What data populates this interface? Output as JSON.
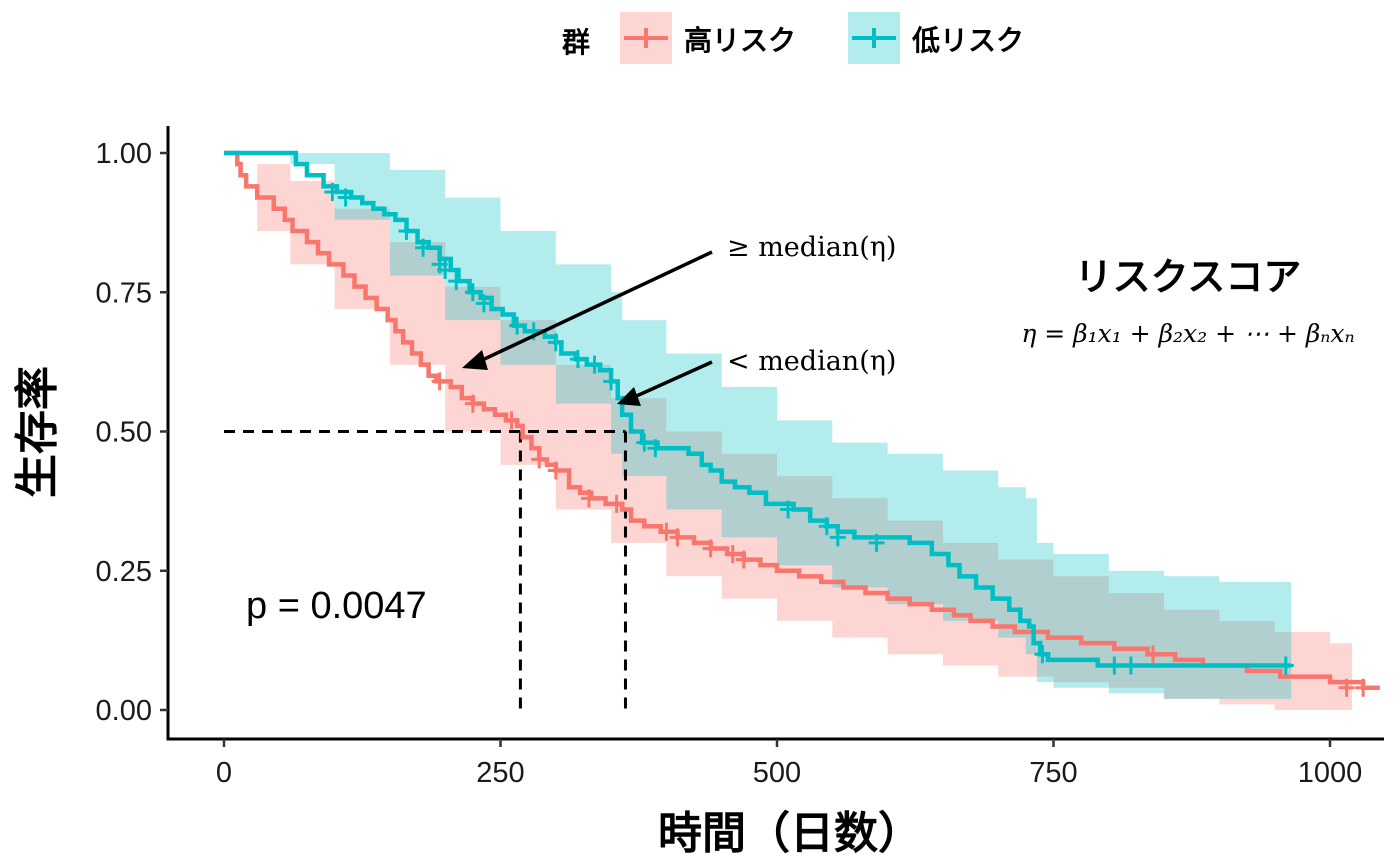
{
  "chart_data": {
    "type": "line",
    "subtype": "kaplan-meier",
    "xlabel": "時間（日数）",
    "ylabel": "生存率",
    "xlim": [
      -50,
      1045
    ],
    "ylim": [
      -0.05,
      1.05
    ],
    "xticks": [
      0,
      250,
      500,
      750,
      1000
    ],
    "xtick_labels": [
      "0",
      "250",
      "500",
      "750",
      "1000"
    ],
    "yticks": [
      0,
      0.25,
      0.5,
      0.75,
      1.0
    ],
    "ytick_labels": [
      "0.00",
      "0.25",
      "0.50",
      "0.75",
      "1.00"
    ],
    "grid": false,
    "legend": {
      "title": "群",
      "placement": "top",
      "entries": [
        "高リスク",
        "低リスク"
      ]
    },
    "p_value_text": "p = 0.0047",
    "median_line_y": 0.5,
    "medians": [
      268,
      363
    ],
    "annotations": {
      "high_label": "≥ median(η)",
      "low_label": "< median(η)",
      "score_title": "リスクスコア",
      "formula": "η = β₁x₁ + β₂x₂ + ⋯ + βₙxₙ"
    },
    "series": [
      {
        "name": "高リスク",
        "color": "#F8766D",
        "band_color": "#F8766D",
        "steps": [
          [
            0,
            1.0
          ],
          [
            12,
            0.98
          ],
          [
            15,
            0.96
          ],
          [
            20,
            0.94
          ],
          [
            30,
            0.92
          ],
          [
            45,
            0.9
          ],
          [
            55,
            0.88
          ],
          [
            62,
            0.86
          ],
          [
            75,
            0.84
          ],
          [
            85,
            0.82
          ],
          [
            95,
            0.8
          ],
          [
            108,
            0.78
          ],
          [
            118,
            0.76
          ],
          [
            128,
            0.74
          ],
          [
            138,
            0.72
          ],
          [
            148,
            0.7
          ],
          [
            155,
            0.68
          ],
          [
            162,
            0.66
          ],
          [
            170,
            0.64
          ],
          [
            178,
            0.62
          ],
          [
            185,
            0.6
          ],
          [
            192,
            0.59
          ],
          [
            205,
            0.58
          ],
          [
            215,
            0.56
          ],
          [
            225,
            0.55
          ],
          [
            235,
            0.54
          ],
          [
            245,
            0.53
          ],
          [
            255,
            0.52
          ],
          [
            265,
            0.51
          ],
          [
            270,
            0.49
          ],
          [
            278,
            0.47
          ],
          [
            285,
            0.45
          ],
          [
            292,
            0.44
          ],
          [
            300,
            0.43
          ],
          [
            312,
            0.4
          ],
          [
            322,
            0.39
          ],
          [
            332,
            0.38
          ],
          [
            345,
            0.37
          ],
          [
            360,
            0.36
          ],
          [
            368,
            0.34
          ],
          [
            380,
            0.33
          ],
          [
            395,
            0.32
          ],
          [
            410,
            0.31
          ],
          [
            425,
            0.3
          ],
          [
            440,
            0.29
          ],
          [
            455,
            0.28
          ],
          [
            470,
            0.27
          ],
          [
            485,
            0.26
          ],
          [
            500,
            0.25
          ],
          [
            520,
            0.24
          ],
          [
            540,
            0.23
          ],
          [
            560,
            0.22
          ],
          [
            580,
            0.21
          ],
          [
            600,
            0.2
          ],
          [
            620,
            0.19
          ],
          [
            640,
            0.18
          ],
          [
            660,
            0.17
          ],
          [
            675,
            0.16
          ],
          [
            695,
            0.15
          ],
          [
            715,
            0.14
          ],
          [
            745,
            0.13
          ],
          [
            775,
            0.12
          ],
          [
            805,
            0.11
          ],
          [
            835,
            0.1
          ],
          [
            860,
            0.09
          ],
          [
            885,
            0.08
          ],
          [
            925,
            0.07
          ],
          [
            955,
            0.06
          ],
          [
            1000,
            0.05
          ],
          [
            1030,
            0.04
          ],
          [
            1045,
            0.04
          ]
        ],
        "censor_marks": [
          [
            195,
            0.59
          ],
          [
            225,
            0.55
          ],
          [
            260,
            0.52
          ],
          [
            285,
            0.45
          ],
          [
            300,
            0.43
          ],
          [
            330,
            0.38
          ],
          [
            355,
            0.37
          ],
          [
            400,
            0.32
          ],
          [
            410,
            0.31
          ],
          [
            440,
            0.29
          ],
          [
            460,
            0.28
          ],
          [
            470,
            0.27
          ],
          [
            840,
            0.1
          ],
          [
            1015,
            0.04
          ],
          [
            1030,
            0.04
          ]
        ],
        "band_upper": [
          [
            0,
            1.0
          ],
          [
            30,
            0.98
          ],
          [
            60,
            0.95
          ],
          [
            100,
            0.9
          ],
          [
            150,
            0.84
          ],
          [
            200,
            0.76
          ],
          [
            250,
            0.7
          ],
          [
            300,
            0.62
          ],
          [
            350,
            0.56
          ],
          [
            400,
            0.5
          ],
          [
            450,
            0.46
          ],
          [
            500,
            0.42
          ],
          [
            550,
            0.38
          ],
          [
            600,
            0.34
          ],
          [
            650,
            0.3
          ],
          [
            700,
            0.27
          ],
          [
            750,
            0.24
          ],
          [
            800,
            0.21
          ],
          [
            850,
            0.18
          ],
          [
            900,
            0.16
          ],
          [
            950,
            0.14
          ],
          [
            1000,
            0.12
          ],
          [
            1020,
            0.12
          ]
        ],
        "band_lower": [
          [
            0,
            1.0
          ],
          [
            30,
            0.86
          ],
          [
            60,
            0.8
          ],
          [
            100,
            0.72
          ],
          [
            150,
            0.62
          ],
          [
            200,
            0.5
          ],
          [
            250,
            0.44
          ],
          [
            300,
            0.36
          ],
          [
            350,
            0.3
          ],
          [
            400,
            0.24
          ],
          [
            450,
            0.2
          ],
          [
            500,
            0.16
          ],
          [
            550,
            0.13
          ],
          [
            600,
            0.1
          ],
          [
            650,
            0.08
          ],
          [
            700,
            0.06
          ],
          [
            750,
            0.05
          ],
          [
            800,
            0.04
          ],
          [
            850,
            0.02
          ],
          [
            900,
            0.01
          ],
          [
            950,
            0.0
          ],
          [
            1000,
            0.0
          ],
          [
            1020,
            0.0
          ]
        ]
      },
      {
        "name": "低リスク",
        "color": "#00BFC4",
        "band_color": "#00BFC4",
        "steps": [
          [
            0,
            1.0
          ],
          [
            60,
            1.0
          ],
          [
            65,
            0.98
          ],
          [
            75,
            0.96
          ],
          [
            90,
            0.94
          ],
          [
            102,
            0.93
          ],
          [
            115,
            0.92
          ],
          [
            125,
            0.91
          ],
          [
            135,
            0.9
          ],
          [
            145,
            0.89
          ],
          [
            155,
            0.88
          ],
          [
            165,
            0.86
          ],
          [
            175,
            0.84
          ],
          [
            185,
            0.83
          ],
          [
            195,
            0.81
          ],
          [
            205,
            0.79
          ],
          [
            212,
            0.77
          ],
          [
            222,
            0.75
          ],
          [
            232,
            0.74
          ],
          [
            242,
            0.72
          ],
          [
            252,
            0.71
          ],
          [
            262,
            0.69
          ],
          [
            272,
            0.68
          ],
          [
            290,
            0.67
          ],
          [
            300,
            0.66
          ],
          [
            305,
            0.64
          ],
          [
            318,
            0.63
          ],
          [
            328,
            0.62
          ],
          [
            340,
            0.61
          ],
          [
            350,
            0.59
          ],
          [
            356,
            0.56
          ],
          [
            360,
            0.53
          ],
          [
            368,
            0.5
          ],
          [
            378,
            0.48
          ],
          [
            392,
            0.47
          ],
          [
            420,
            0.46
          ],
          [
            432,
            0.44
          ],
          [
            440,
            0.43
          ],
          [
            450,
            0.41
          ],
          [
            462,
            0.4
          ],
          [
            475,
            0.39
          ],
          [
            490,
            0.37
          ],
          [
            515,
            0.36
          ],
          [
            530,
            0.34
          ],
          [
            545,
            0.33
          ],
          [
            555,
            0.32
          ],
          [
            570,
            0.31
          ],
          [
            620,
            0.3
          ],
          [
            640,
            0.28
          ],
          [
            655,
            0.26
          ],
          [
            665,
            0.24
          ],
          [
            680,
            0.22
          ],
          [
            695,
            0.2
          ],
          [
            710,
            0.18
          ],
          [
            720,
            0.16
          ],
          [
            728,
            0.15
          ],
          [
            732,
            0.12
          ],
          [
            738,
            0.1
          ],
          [
            745,
            0.09
          ],
          [
            770,
            0.09
          ],
          [
            790,
            0.08
          ],
          [
            965,
            0.08
          ]
        ],
        "censor_marks": [
          [
            98,
            0.93
          ],
          [
            110,
            0.92
          ],
          [
            165,
            0.86
          ],
          [
            180,
            0.83
          ],
          [
            195,
            0.8
          ],
          [
            200,
            0.79
          ],
          [
            210,
            0.77
          ],
          [
            225,
            0.75
          ],
          [
            235,
            0.73
          ],
          [
            265,
            0.69
          ],
          [
            280,
            0.68
          ],
          [
            300,
            0.66
          ],
          [
            320,
            0.63
          ],
          [
            335,
            0.62
          ],
          [
            350,
            0.59
          ],
          [
            380,
            0.48
          ],
          [
            390,
            0.47
          ],
          [
            510,
            0.36
          ],
          [
            545,
            0.33
          ],
          [
            555,
            0.31
          ],
          [
            590,
            0.3
          ],
          [
            740,
            0.1
          ],
          [
            805,
            0.08
          ],
          [
            820,
            0.08
          ],
          [
            960,
            0.08
          ]
        ],
        "band_upper": [
          [
            0,
            1.0
          ],
          [
            60,
            1.0
          ],
          [
            100,
            1.0
          ],
          [
            150,
            0.97
          ],
          [
            200,
            0.92
          ],
          [
            250,
            0.86
          ],
          [
            300,
            0.8
          ],
          [
            350,
            0.75
          ],
          [
            360,
            0.7
          ],
          [
            400,
            0.64
          ],
          [
            450,
            0.58
          ],
          [
            500,
            0.52
          ],
          [
            550,
            0.48
          ],
          [
            600,
            0.46
          ],
          [
            650,
            0.43
          ],
          [
            700,
            0.4
          ],
          [
            725,
            0.38
          ],
          [
            735,
            0.3
          ],
          [
            750,
            0.28
          ],
          [
            800,
            0.25
          ],
          [
            850,
            0.24
          ],
          [
            900,
            0.23
          ],
          [
            965,
            0.22
          ]
        ],
        "band_lower": [
          [
            0,
            1.0
          ],
          [
            60,
            0.98
          ],
          [
            100,
            0.88
          ],
          [
            150,
            0.78
          ],
          [
            200,
            0.7
          ],
          [
            250,
            0.62
          ],
          [
            300,
            0.55
          ],
          [
            350,
            0.46
          ],
          [
            360,
            0.42
          ],
          [
            400,
            0.36
          ],
          [
            450,
            0.31
          ],
          [
            500,
            0.26
          ],
          [
            550,
            0.22
          ],
          [
            600,
            0.19
          ],
          [
            650,
            0.16
          ],
          [
            700,
            0.13
          ],
          [
            725,
            0.1
          ],
          [
            735,
            0.05
          ],
          [
            750,
            0.04
          ],
          [
            800,
            0.03
          ],
          [
            850,
            0.02
          ],
          [
            900,
            0.02
          ],
          [
            965,
            0.02
          ]
        ]
      }
    ]
  }
}
